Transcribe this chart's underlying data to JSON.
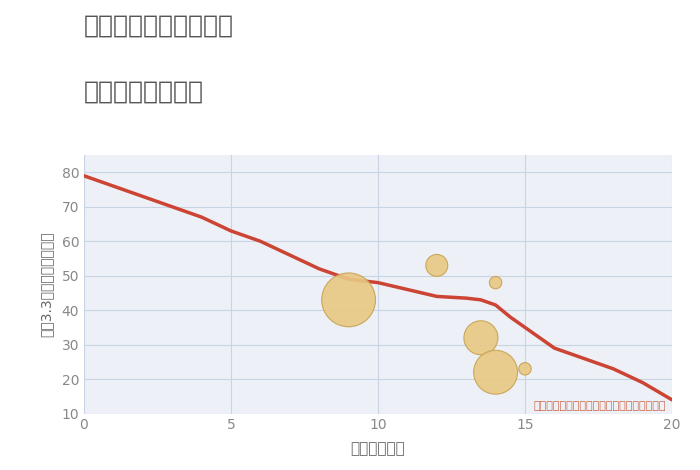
{
  "title_line1": "大阪府枚方市渚東町の",
  "title_line2": "駅距離別土地価格",
  "xlabel": "駅距離（分）",
  "ylabel": "坪（3.3㎡）単価（万円）",
  "background_color": "#ffffff",
  "plot_bg_color": "#edf1f7",
  "line_color": "#cc4433",
  "line_x": [
    0,
    1,
    2,
    3,
    4,
    5,
    6,
    7,
    8,
    9,
    9.5,
    10,
    11,
    12,
    13,
    13.5,
    14,
    14.5,
    15,
    16,
    17,
    18,
    19,
    20
  ],
  "line_y": [
    79,
    76,
    73,
    70,
    67,
    63,
    60,
    56,
    52,
    49,
    48.5,
    48,
    46,
    44,
    43.5,
    43,
    41.5,
    38,
    35,
    29,
    26,
    23,
    19,
    14
  ],
  "scatter_x": [
    9,
    12,
    14,
    13.5,
    14,
    15
  ],
  "scatter_y": [
    43,
    53,
    48,
    32,
    22,
    23
  ],
  "scatter_sizes": [
    1500,
    250,
    80,
    600,
    1000,
    80
  ],
  "scatter_color": "#e8c882",
  "scatter_edge_color": "#c8a050",
  "annotation": "円の大きさは、取引のあった物件面積を示す",
  "annotation_color": "#cc6644",
  "xlim": [
    0,
    20
  ],
  "ylim": [
    10,
    85
  ],
  "xticks": [
    0,
    5,
    10,
    15,
    20
  ],
  "yticks": [
    10,
    20,
    30,
    40,
    50,
    60,
    70,
    80
  ],
  "grid_color": "#c8d4e4",
  "title_color": "#555555",
  "axis_label_color": "#666666",
  "tick_color": "#888888",
  "title_fontsize": 18,
  "label_fontsize": 11,
  "tick_fontsize": 10,
  "annot_fontsize": 8
}
